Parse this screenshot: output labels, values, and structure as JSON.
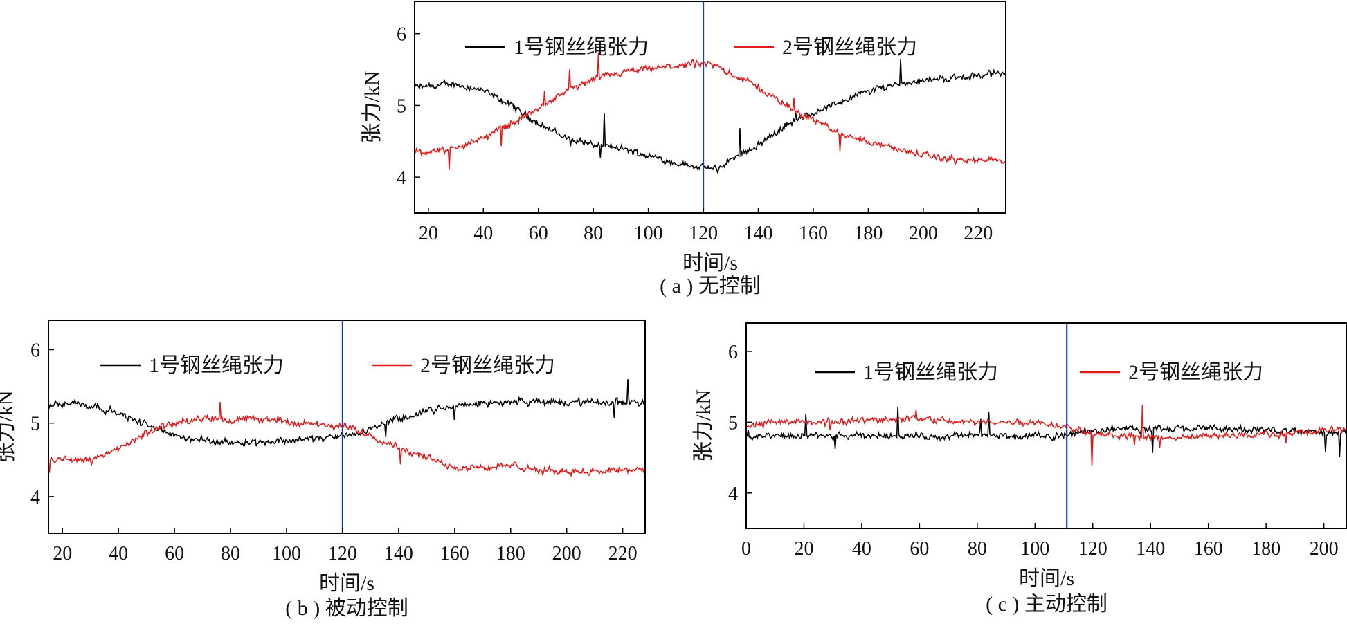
{
  "chart_data": [
    {
      "type": "line",
      "caption": "( a ) 无控制",
      "xlabel": "时间/s",
      "ylabel": "张力/kN",
      "xlim": [
        15,
        230
      ],
      "ylim": [
        3.5,
        6.45
      ],
      "xticks": [
        20,
        40,
        60,
        80,
        100,
        120,
        140,
        160,
        180,
        200,
        220
      ],
      "yticks": [
        4,
        5,
        6
      ],
      "vline_x": 120,
      "vline_color": "#1f3fa8",
      "legend": "top",
      "series": [
        {
          "name": "1号钢丝绳张力",
          "color": "#000000",
          "x": [
            15,
            30,
            40,
            50,
            60,
            70,
            80,
            90,
            100,
            110,
            118,
            125,
            130,
            140,
            150,
            160,
            170,
            180,
            190,
            200,
            210,
            220,
            230
          ],
          "y": [
            5.25,
            5.3,
            5.2,
            5.0,
            4.75,
            4.55,
            4.45,
            4.4,
            4.3,
            4.2,
            4.15,
            4.1,
            4.25,
            4.45,
            4.72,
            4.9,
            5.05,
            5.2,
            5.3,
            5.35,
            5.38,
            5.42,
            5.45
          ]
        },
        {
          "name": "2号钢丝绳张力",
          "color": "#e31a1a",
          "x": [
            15,
            28,
            40,
            50,
            60,
            70,
            80,
            90,
            100,
            110,
            118,
            125,
            130,
            140,
            150,
            160,
            170,
            180,
            190,
            200,
            210,
            220,
            230
          ],
          "y": [
            4.35,
            4.38,
            4.55,
            4.75,
            4.95,
            5.2,
            5.35,
            5.45,
            5.5,
            5.55,
            5.58,
            5.55,
            5.45,
            5.25,
            5.0,
            4.8,
            4.6,
            4.5,
            4.4,
            4.3,
            4.25,
            4.22,
            4.25
          ]
        }
      ]
    },
    {
      "type": "line",
      "caption": "( b ) 被动控制",
      "xlabel": "时间/s",
      "ylabel": "张力/kN",
      "xlim": [
        15,
        228
      ],
      "ylim": [
        3.5,
        6.4
      ],
      "xticks": [
        20,
        40,
        60,
        80,
        100,
        120,
        140,
        160,
        180,
        200,
        220
      ],
      "yticks": [
        4,
        5,
        6
      ],
      "vline_x": 120,
      "vline_color": "#1f3fa8",
      "legend": "top",
      "series": [
        {
          "name": "1号钢丝绳张力",
          "color": "#000000",
          "x": [
            15,
            25,
            35,
            45,
            55,
            65,
            75,
            85,
            95,
            105,
            115,
            120,
            125,
            135,
            145,
            155,
            165,
            175,
            185,
            195,
            205,
            215,
            228
          ],
          "y": [
            5.25,
            5.28,
            5.2,
            5.05,
            4.9,
            4.78,
            4.75,
            4.75,
            4.75,
            4.78,
            4.8,
            4.82,
            4.85,
            5.0,
            5.1,
            5.2,
            5.25,
            5.28,
            5.3,
            5.28,
            5.28,
            5.28,
            5.3
          ]
        },
        {
          "name": "2号钢丝绳张力",
          "color": "#e31a1a",
          "x": [
            15,
            25,
            35,
            45,
            55,
            65,
            75,
            85,
            95,
            105,
            115,
            120,
            125,
            135,
            145,
            152,
            160,
            170,
            180,
            190,
            200,
            215,
            228
          ],
          "y": [
            4.5,
            4.5,
            4.55,
            4.75,
            4.95,
            5.05,
            5.05,
            5.05,
            5.05,
            5.0,
            4.95,
            4.95,
            4.92,
            4.75,
            4.6,
            4.5,
            4.4,
            4.4,
            4.42,
            4.35,
            4.35,
            4.35,
            4.38
          ]
        }
      ]
    },
    {
      "type": "line",
      "caption": "( c ) 主动控制",
      "xlabel": "时间/s",
      "ylabel": "张力/kN",
      "xlim": [
        0,
        208
      ],
      "ylim": [
        3.5,
        6.4
      ],
      "xticks": [
        0,
        20,
        40,
        60,
        80,
        100,
        120,
        140,
        160,
        180,
        200
      ],
      "yticks": [
        4,
        5,
        6
      ],
      "vline_x": 111,
      "vline_color": "#1f3fa8",
      "legend": "top",
      "series": [
        {
          "name": "1号钢丝绳张力",
          "color": "#000000",
          "x": [
            0,
            10,
            20,
            30,
            40,
            50,
            60,
            70,
            80,
            90,
            100,
            110,
            120,
            130,
            140,
            150,
            160,
            170,
            180,
            190,
            200,
            208
          ],
          "y": [
            4.78,
            4.8,
            4.8,
            4.8,
            4.8,
            4.82,
            4.8,
            4.8,
            4.82,
            4.8,
            4.8,
            4.82,
            4.88,
            4.92,
            4.9,
            4.9,
            4.92,
            4.9,
            4.88,
            4.88,
            4.85,
            4.85
          ]
        },
        {
          "name": "2号钢丝绳张力",
          "color": "#e31a1a",
          "x": [
            0,
            10,
            20,
            30,
            40,
            50,
            60,
            70,
            80,
            90,
            100,
            110,
            120,
            130,
            140,
            150,
            160,
            170,
            180,
            190,
            200,
            208
          ],
          "y": [
            4.95,
            5.0,
            5.0,
            5.0,
            5.02,
            5.05,
            5.05,
            5.02,
            5.0,
            5.0,
            5.0,
            4.95,
            4.85,
            4.8,
            4.78,
            4.78,
            4.8,
            4.82,
            4.82,
            4.85,
            4.88,
            4.9
          ]
        }
      ]
    }
  ]
}
